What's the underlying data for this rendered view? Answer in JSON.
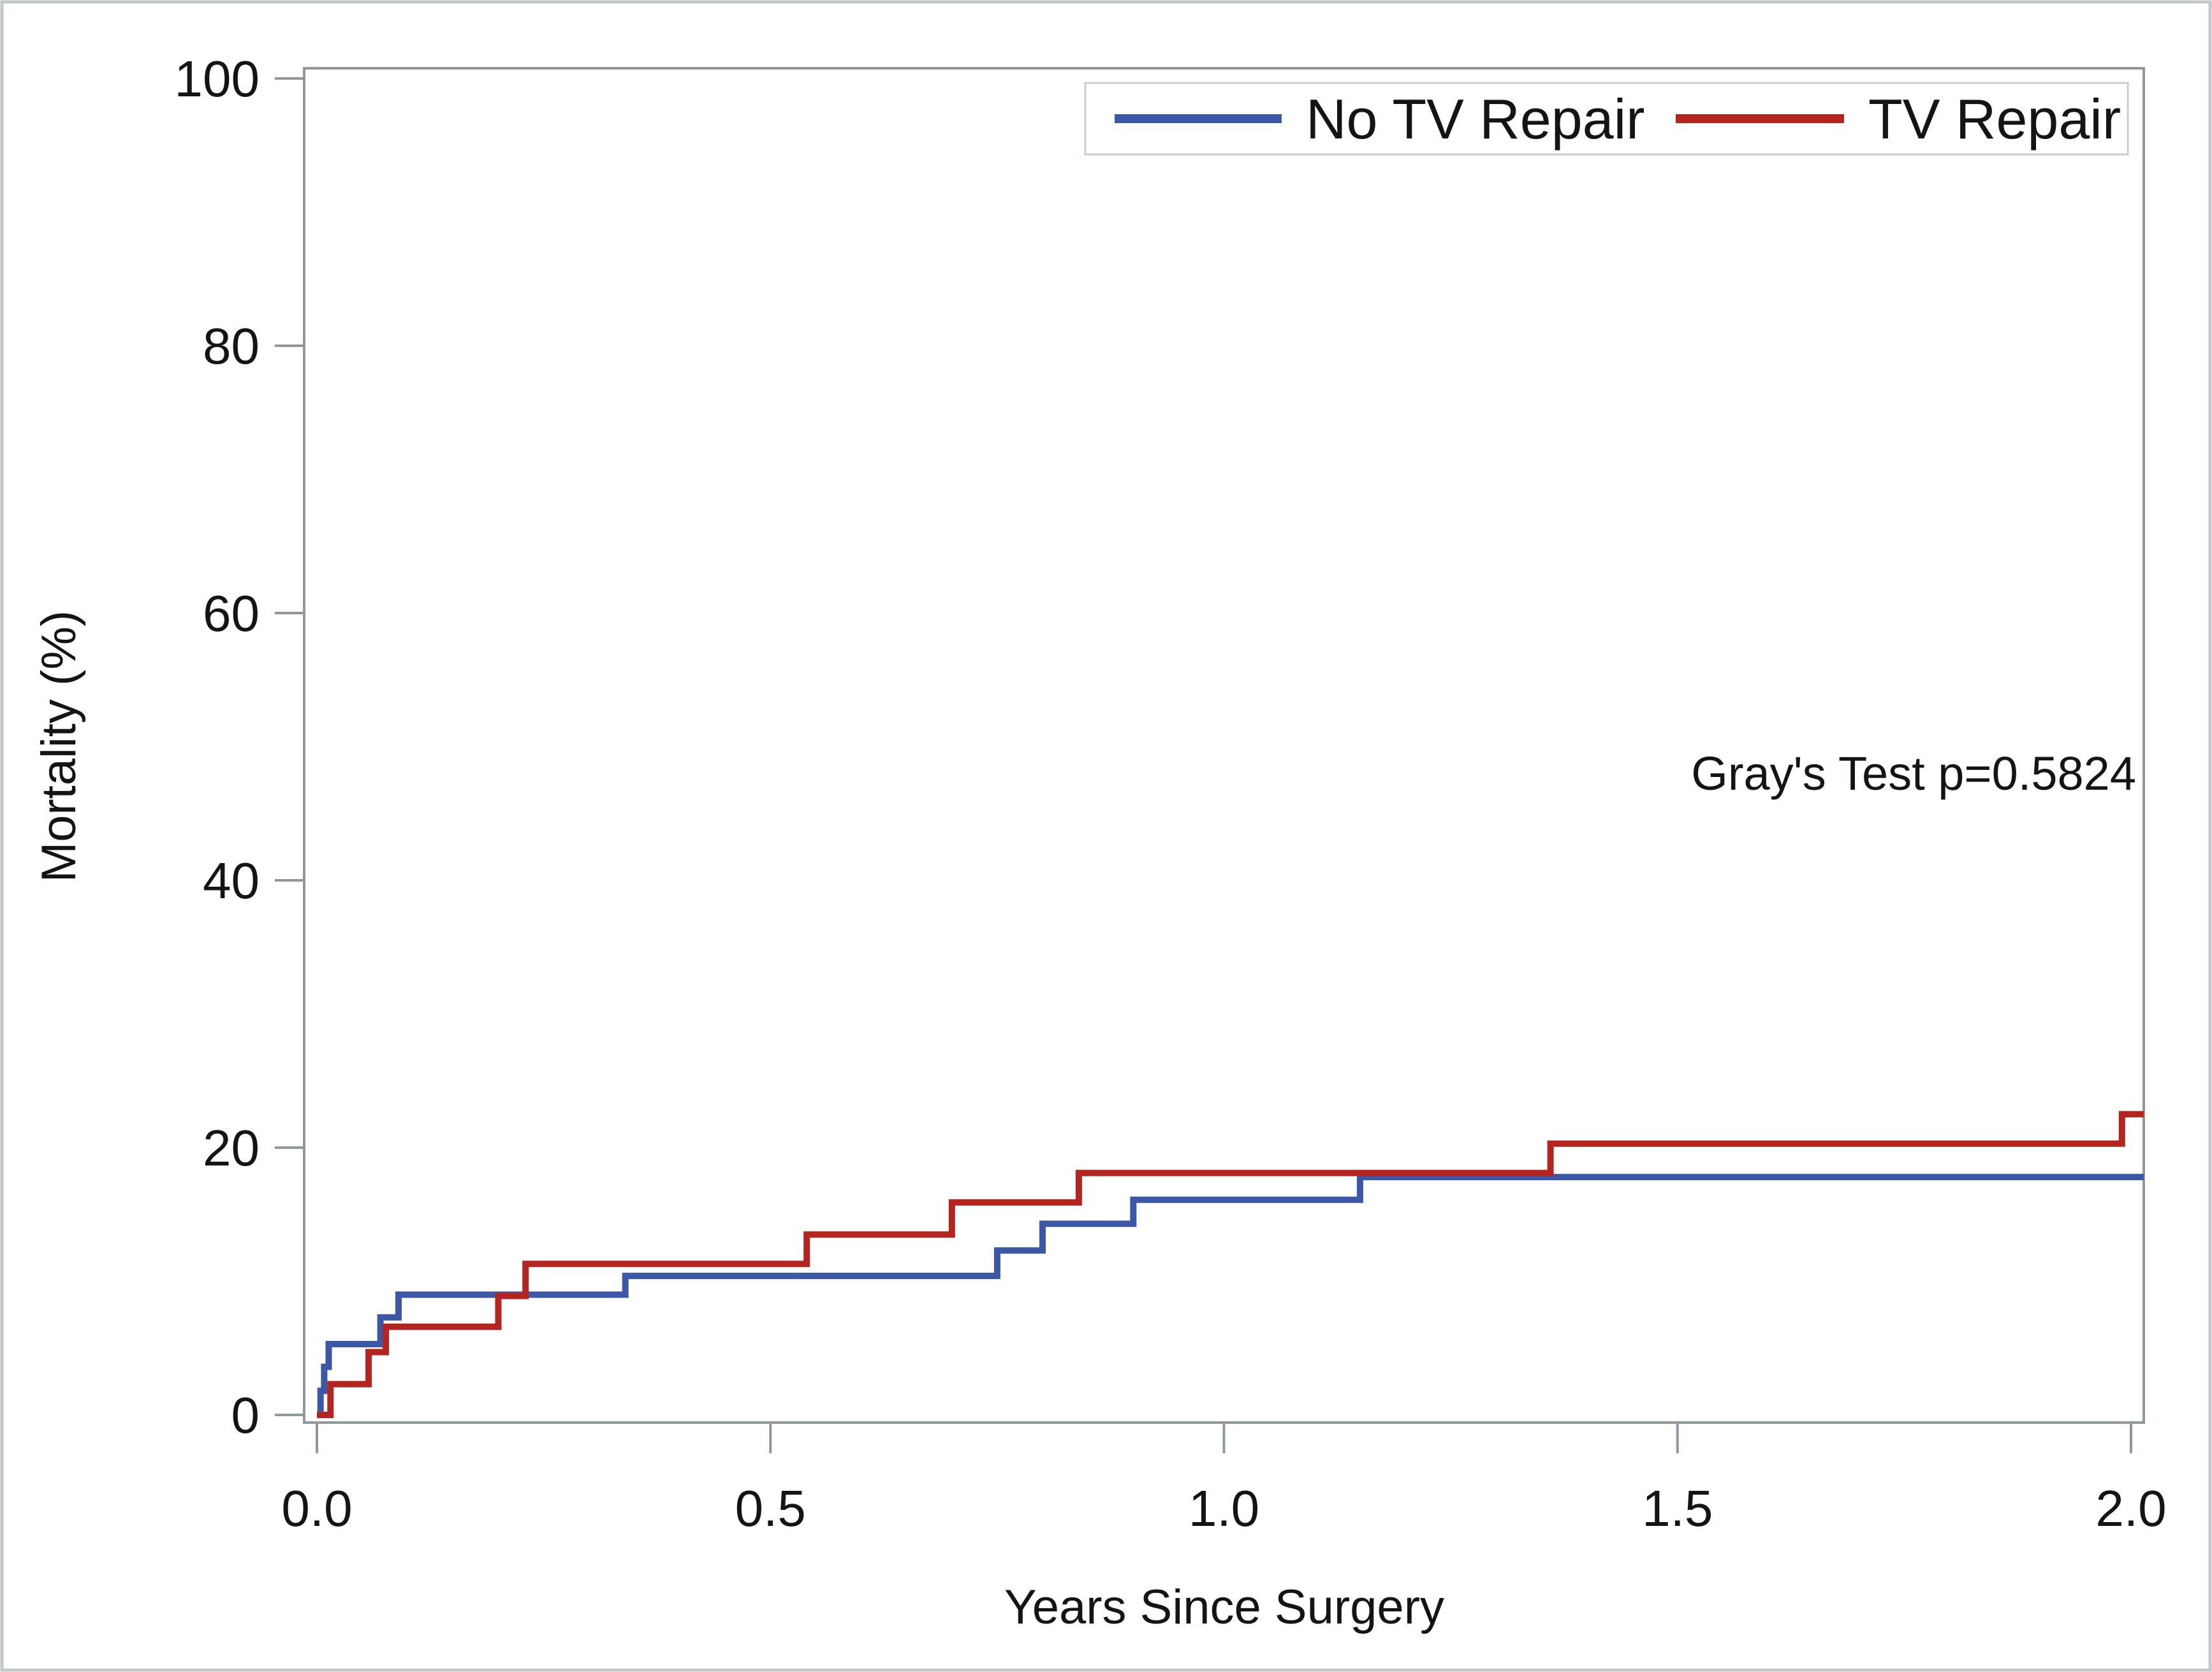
{
  "figure": {
    "background_color": "#ffffff",
    "border_color": "#c2c7ca",
    "axis_color": "#90989c",
    "text_color": "#141414"
  },
  "annotation": {
    "text": "Gray's Test p=0.5824",
    "test_name": "Gray's Test",
    "p_value": "0.5824"
  },
  "chart_data": {
    "type": "line",
    "subtype": "step-cumulative-incidence",
    "title": "",
    "xlabel": "Years Since Surgery",
    "ylabel": "Mortality (%)",
    "xlim": [
      0.0,
      2.0
    ],
    "ylim": [
      0,
      100
    ],
    "xtick_values": [
      0.0,
      0.5,
      1.0,
      1.5,
      2.0
    ],
    "xtick_labels": [
      "0.0",
      "0.5",
      "1.0",
      "1.5",
      "2.0"
    ],
    "ytick_values": [
      0,
      20,
      40,
      60,
      80,
      100
    ],
    "ytick_labels": [
      "0",
      "20",
      "40",
      "60",
      "80",
      "100"
    ],
    "grid": false,
    "legend_position": "top-right-inside",
    "series": [
      {
        "name": "No TV Repair",
        "color": "#3b57a5",
        "end_time": 2.0,
        "points": [
          [
            0,
            0
          ],
          [
            0.004,
            1.8
          ],
          [
            0.008,
            3.6
          ],
          [
            0.013,
            5.3
          ],
          [
            0.07,
            7.3
          ],
          [
            0.09,
            9.0
          ],
          [
            0.34,
            10.4
          ],
          [
            0.75,
            12.3
          ],
          [
            0.8,
            14.3
          ],
          [
            0.9,
            16.1
          ],
          [
            1.15,
            17.8
          ]
        ]
      },
      {
        "name": "TV Repair",
        "color": "#b3251e",
        "end_time": 2.0,
        "points": [
          [
            0,
            0
          ],
          [
            0.015,
            2.3
          ],
          [
            0.057,
            4.7
          ],
          [
            0.076,
            6.6
          ],
          [
            0.2,
            8.9
          ],
          [
            0.23,
            11.3
          ],
          [
            0.54,
            13.5
          ],
          [
            0.7,
            15.9
          ],
          [
            0.84,
            18.1
          ],
          [
            1.36,
            20.3
          ],
          [
            1.99,
            22.5
          ]
        ]
      }
    ]
  }
}
